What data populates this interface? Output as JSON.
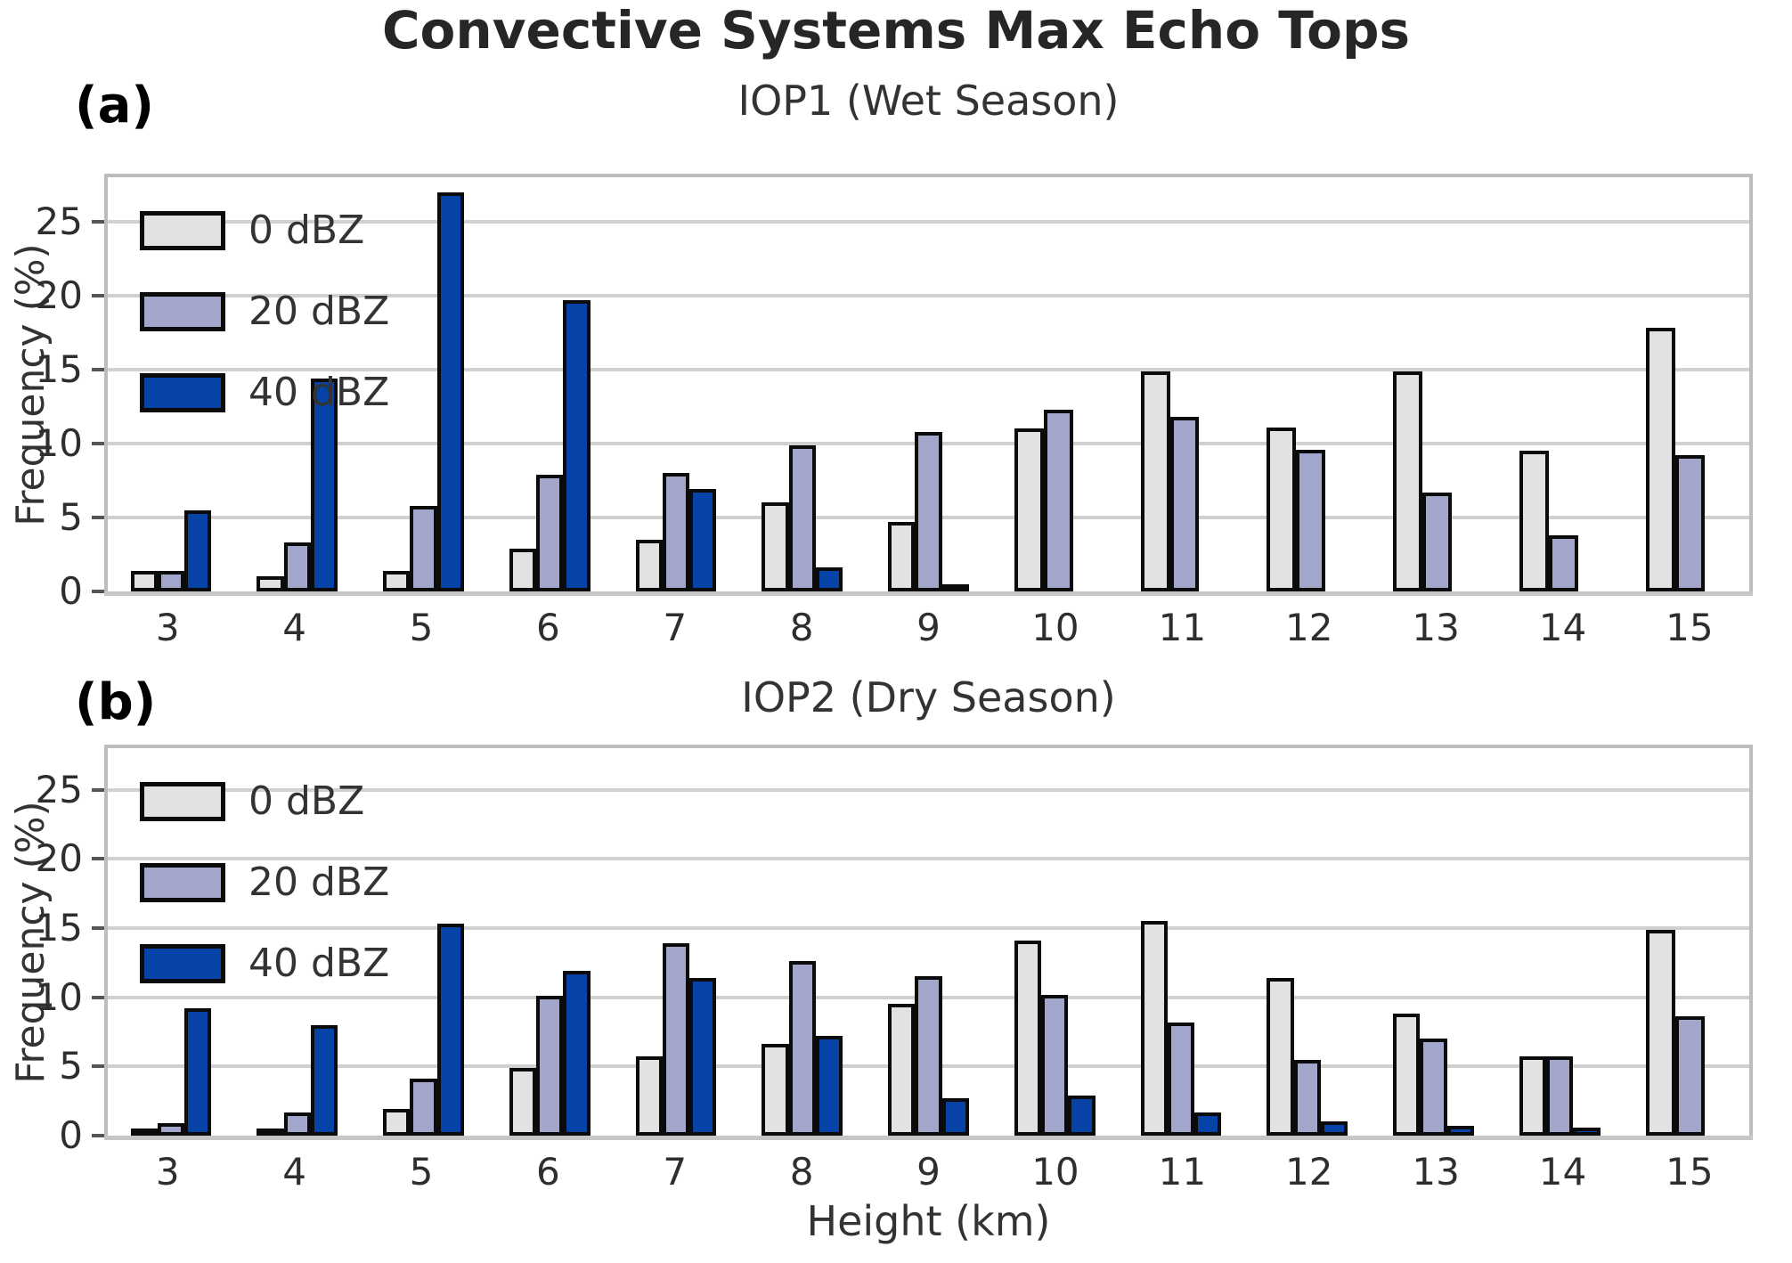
{
  "title": "Convective Systems Max Echo Tops",
  "xaxis_label": "Height (km)",
  "yaxis_label": "Frequency (%)",
  "legend_labels": [
    "0 dBZ",
    "20 dBZ",
    "40 dBZ"
  ],
  "colors": {
    "series_0dbz": "#e2e2e2",
    "series_20dbz": "#a2a6ca",
    "series_40dbz": "#0742a6",
    "bar_edge": "#0b0b0b",
    "grid": "#d0d0d0",
    "title_text": "#262626"
  },
  "chart_data": [
    {
      "type": "bar",
      "panel_label": "(a)",
      "title": "IOP1 (Wet Season)",
      "categories": [
        "3",
        "4",
        "5",
        "6",
        "7",
        "8",
        "9",
        "10",
        "11",
        "12",
        "13",
        "14",
        "15"
      ],
      "series": [
        {
          "name": "0 dBZ",
          "color": "#e2e2e2",
          "values": [
            1.4,
            1.0,
            1.4,
            2.9,
            3.5,
            6.0,
            4.7,
            11.0,
            14.9,
            11.1,
            14.9,
            9.5,
            17.8
          ]
        },
        {
          "name": "20 dBZ",
          "color": "#a2a6ca",
          "values": [
            1.4,
            3.3,
            5.8,
            7.9,
            8.0,
            9.9,
            10.8,
            12.3,
            11.8,
            9.6,
            6.7,
            3.8,
            9.2
          ]
        },
        {
          "name": "40 dBZ",
          "color": "#0742a6",
          "values": [
            5.5,
            14.4,
            27.0,
            19.7,
            6.9,
            1.6,
            0.4,
            0,
            0,
            0,
            0,
            0,
            0
          ]
        }
      ],
      "xlabel": "",
      "ylabel": "Frequency (%)",
      "ylim": [
        0,
        28
      ],
      "yticks": [
        0,
        5,
        10,
        15,
        20,
        25
      ],
      "grid": true,
      "legend_position": "upper left"
    },
    {
      "type": "bar",
      "panel_label": "(b)",
      "title": "IOP2 (Dry Season)",
      "categories": [
        "3",
        "4",
        "5",
        "6",
        "7",
        "8",
        "9",
        "10",
        "11",
        "12",
        "13",
        "14",
        "15"
      ],
      "series": [
        {
          "name": "0 dBZ",
          "color": "#e2e2e2",
          "values": [
            0.4,
            0.4,
            1.9,
            4.9,
            5.7,
            6.6,
            9.5,
            14.1,
            15.5,
            11.4,
            8.8,
            5.7,
            14.9
          ]
        },
        {
          "name": "20 dBZ",
          "color": "#a2a6ca",
          "values": [
            0.9,
            1.7,
            4.1,
            10.1,
            13.9,
            12.6,
            11.5,
            10.2,
            8.2,
            5.5,
            7.0,
            5.7,
            8.6
          ]
        },
        {
          "name": "40 dBZ",
          "color": "#0742a6",
          "values": [
            9.2,
            8.0,
            15.3,
            11.9,
            11.4,
            7.2,
            2.7,
            2.9,
            1.7,
            1.0,
            0.7,
            0.6,
            0
          ]
        }
      ],
      "xlabel": "Height (km)",
      "ylabel": "Frequency (%)",
      "ylim": [
        0,
        28
      ],
      "yticks": [
        0,
        5,
        10,
        15,
        20,
        25
      ],
      "grid": true,
      "legend_position": "upper left"
    }
  ]
}
